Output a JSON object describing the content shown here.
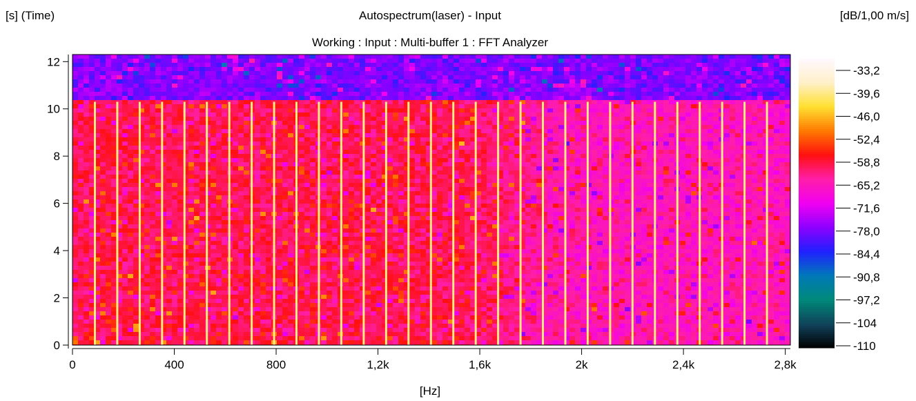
{
  "header": {
    "y_unit_label": "[s] (Time)",
    "title": "Autospectrum(laser) - Input",
    "subtitle": "Working : Input : Multi-buffer 1 : FFT Analyzer",
    "colorbar_unit_label": "[dB/1,00 m/s]"
  },
  "chart_data": {
    "type": "heatmap",
    "title": "Autospectrum(laser) - Input",
    "subtitle": "Working : Input : Multi-buffer 1 : FFT Analyzer",
    "xlabel": "[Hz]",
    "ylabel": "[s] (Time)",
    "colorbar_label": "[dB/1,00 m/s]",
    "xlim": [
      0,
      2820
    ],
    "ylim": [
      0,
      12.3
    ],
    "x_ticks": [
      0,
      400,
      800,
      1200,
      1600,
      2000,
      2400,
      2800
    ],
    "x_tick_labels": [
      "0",
      "400",
      "800",
      "1,2k",
      "1,6k",
      "2k",
      "2,4k",
      "2,8k"
    ],
    "y_ticks": [
      0,
      2,
      4,
      6,
      8,
      10,
      12
    ],
    "y_tick_labels": [
      "0",
      "2",
      "4",
      "6",
      "8",
      "10",
      "12"
    ],
    "colorbar_ticks": [
      -33.2,
      -39.6,
      -46.0,
      -52.4,
      -58.8,
      -65.2,
      -71.6,
      -78.0,
      -84.4,
      -90.8,
      -97.2,
      -104,
      -110
    ],
    "colorbar_tick_labels": [
      "-33,2",
      "-39,6",
      "-46,0",
      "-52,4",
      "-58,8",
      "-65,2",
      "-71,6",
      "-78,0",
      "-84,4",
      "-90,8",
      "-97,2",
      "-104",
      "-110"
    ],
    "clim": [
      -110,
      -33.2
    ],
    "colormap": [
      {
        "value": -33.2,
        "color": "#fff8ff"
      },
      {
        "value": -39.6,
        "color": "#fff0c8"
      },
      {
        "value": -46.0,
        "color": "#ffe030"
      },
      {
        "value": -52.4,
        "color": "#ff7a00"
      },
      {
        "value": -58.8,
        "color": "#ff1010"
      },
      {
        "value": -65.2,
        "color": "#ff1ea8"
      },
      {
        "value": -71.6,
        "color": "#f200f2"
      },
      {
        "value": -78.0,
        "color": "#8d00ff"
      },
      {
        "value": -84.4,
        "color": "#2020ff"
      },
      {
        "value": -90.8,
        "color": "#0078b8"
      },
      {
        "value": -97.2,
        "color": "#008a7a"
      },
      {
        "value": -104,
        "color": "#104058"
      },
      {
        "value": -110,
        "color": "#000000"
      }
    ],
    "regions": [
      {
        "name": "stopped-noise",
        "t_range": [
          10.3,
          12.3
        ],
        "level_db": -78.5
      },
      {
        "name": "running",
        "t_range": [
          0,
          10.3
        ],
        "level_db": -61.5
      },
      {
        "name": "running-high-frequency",
        "t_range": [
          0,
          10.3
        ],
        "f_range": [
          1500,
          2820
        ],
        "level_db": -66.5
      }
    ],
    "harmonic_lines": {
      "fundamental_hz": 88,
      "first_order": 1,
      "last_order": 31,
      "t_range": [
        0,
        10.3
      ],
      "level_db": -42.5
    }
  }
}
